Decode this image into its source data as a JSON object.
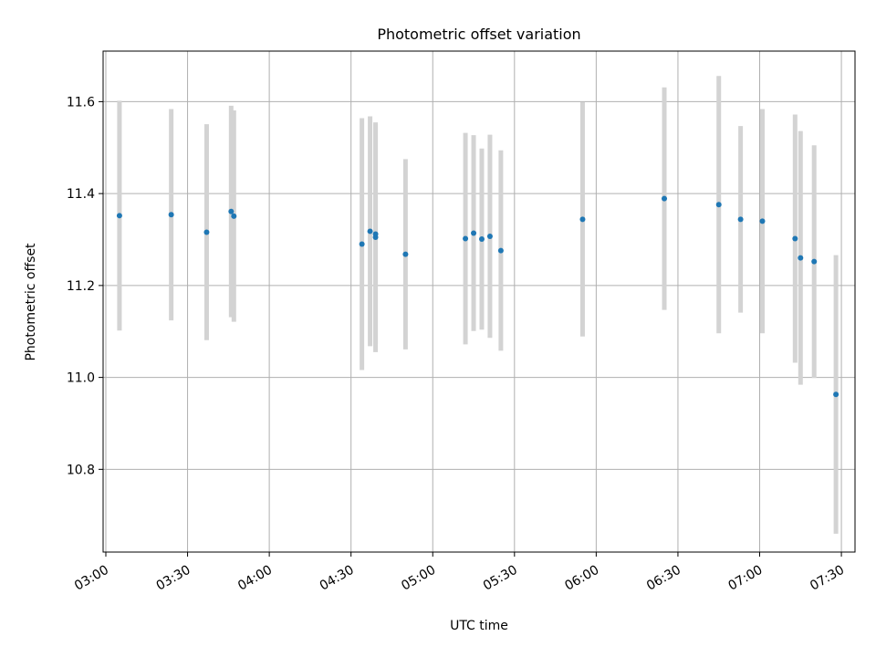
{
  "chart_data": {
    "type": "scatter",
    "title": "Photometric offset variation",
    "xlabel": "UTC time",
    "ylabel": "Photometric offset",
    "xlim": [
      "02:59",
      "07:35"
    ],
    "ylim": [
      10.62,
      11.71
    ],
    "x_ticks": [
      "03:00",
      "03:30",
      "04:00",
      "04:30",
      "05:00",
      "05:30",
      "06:00",
      "06:30",
      "07:00",
      "07:30"
    ],
    "y_ticks": [
      10.8,
      11.0,
      11.2,
      11.4,
      11.6
    ],
    "grid": true,
    "colors": {
      "point": "#1f77b4",
      "errorbar": "#d3d3d3",
      "grid": "#b0b0b0"
    },
    "series": [
      {
        "points": [
          {
            "x": "03:05",
            "y": 11.352,
            "ylow": 11.102,
            "yhigh": 11.602
          },
          {
            "x": "03:24",
            "y": 11.354,
            "ylow": 11.124,
            "yhigh": 11.584
          },
          {
            "x": "03:37",
            "y": 11.316,
            "ylow": 11.081,
            "yhigh": 11.551
          },
          {
            "x": "03:46",
            "y": 11.361,
            "ylow": 11.131,
            "yhigh": 11.591
          },
          {
            "x": "03:47",
            "y": 11.351,
            "ylow": 11.121,
            "yhigh": 11.581
          },
          {
            "x": "04:34",
            "y": 11.29,
            "ylow": 11.016,
            "yhigh": 11.564
          },
          {
            "x": "04:37",
            "y": 11.318,
            "ylow": 11.068,
            "yhigh": 11.568
          },
          {
            "x": "04:39",
            "y": 11.305,
            "ylow": 11.055,
            "yhigh": 11.555
          },
          {
            "x": "04:39",
            "y": 11.312,
            "ylow": 11.072,
            "yhigh": 11.552
          },
          {
            "x": "04:50",
            "y": 11.268,
            "ylow": 11.061,
            "yhigh": 11.475
          },
          {
            "x": "05:12",
            "y": 11.302,
            "ylow": 11.072,
            "yhigh": 11.532
          },
          {
            "x": "05:15",
            "y": 11.314,
            "ylow": 11.101,
            "yhigh": 11.527
          },
          {
            "x": "05:18",
            "y": 11.301,
            "ylow": 11.104,
            "yhigh": 11.498
          },
          {
            "x": "05:21",
            "y": 11.307,
            "ylow": 11.086,
            "yhigh": 11.528
          },
          {
            "x": "05:25",
            "y": 11.276,
            "ylow": 11.058,
            "yhigh": 11.494
          },
          {
            "x": "05:55",
            "y": 11.344,
            "ylow": 11.089,
            "yhigh": 11.599
          },
          {
            "x": "06:25",
            "y": 11.389,
            "ylow": 11.147,
            "yhigh": 11.631
          },
          {
            "x": "06:45",
            "y": 11.376,
            "ylow": 11.096,
            "yhigh": 11.656
          },
          {
            "x": "06:53",
            "y": 11.344,
            "ylow": 11.141,
            "yhigh": 11.547
          },
          {
            "x": "07:01",
            "y": 11.34,
            "ylow": 11.096,
            "yhigh": 11.584
          },
          {
            "x": "07:13",
            "y": 11.302,
            "ylow": 11.032,
            "yhigh": 11.572
          },
          {
            "x": "07:15",
            "y": 11.26,
            "ylow": 10.984,
            "yhigh": 11.536
          },
          {
            "x": "07:20",
            "y": 11.252,
            "ylow": 10.999,
            "yhigh": 11.505
          },
          {
            "x": "07:28",
            "y": 10.963,
            "ylow": 10.66,
            "yhigh": 11.266
          }
        ]
      }
    ]
  }
}
